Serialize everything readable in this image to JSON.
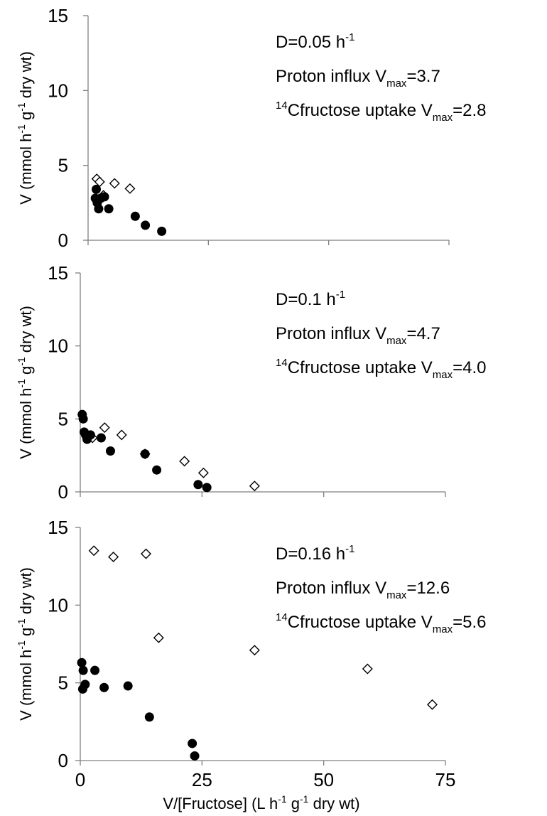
{
  "figure": {
    "xlabel_main": "V/[Fructose] (L h",
    "xlabel_sup1": "-1",
    "xlabel_mid": " g",
    "xlabel_sup2": "-1",
    "xlabel_end": " dry wt)",
    "ylabel_main": "V (mmol h",
    "ylabel_sup1": "-1",
    "ylabel_mid": " g",
    "ylabel_sup2": "-1",
    "ylabel_end": " dry wt)",
    "annotation_prefix_d": "D=",
    "annotation_unit_h": " h",
    "annotation_unit_sup": "-1",
    "annotation_proton": "Proton influx V",
    "annotation_uptake_sup": "14",
    "annotation_uptake": "Cfructose uptake V",
    "annotation_sub": "max",
    "annotation_eq": "="
  },
  "chart_data": [
    {
      "type": "scatter",
      "dilution_rate": "0.05",
      "proton_vmax": "3.7",
      "uptake_vmax": "2.8",
      "xlim": [
        0,
        75
      ],
      "ylim": [
        0,
        15
      ],
      "yticks": [
        "15",
        "10",
        "5",
        "0"
      ],
      "xticks": [],
      "series": [
        {
          "marker": "open-diamond",
          "points": [
            [
              1.8,
              4.1
            ],
            [
              2.4,
              3.9
            ],
            [
              3.2,
              3.0
            ],
            [
              5.5,
              3.8
            ],
            [
              8.7,
              3.45
            ]
          ]
        },
        {
          "marker": "filled-circle",
          "points": [
            [
              1.7,
              3.4
            ],
            [
              1.5,
              2.8
            ],
            [
              1.9,
              2.5
            ],
            [
              2.2,
              2.1
            ],
            [
              2.6,
              2.8
            ],
            [
              3.4,
              2.9
            ],
            [
              4.3,
              2.1
            ],
            [
              9.8,
              1.6
            ],
            [
              11.9,
              1.0
            ],
            [
              15.3,
              0.6
            ]
          ]
        }
      ]
    },
    {
      "type": "scatter",
      "dilution_rate": "0.1",
      "proton_vmax": "4.7",
      "uptake_vmax": "4.0",
      "xlim": [
        0,
        75
      ],
      "ylim": [
        0,
        15
      ],
      "yticks": [
        "15",
        "10",
        "5",
        "0"
      ],
      "xticks": [],
      "series": [
        {
          "marker": "open-diamond",
          "points": [
            [
              2.5,
              3.7
            ],
            [
              5.0,
              4.4
            ],
            [
              8.5,
              3.9
            ],
            [
              13.3,
              2.6
            ],
            [
              21.4,
              2.1
            ],
            [
              25.3,
              1.3
            ],
            [
              35.8,
              0.4
            ]
          ]
        },
        {
          "marker": "filled-circle",
          "points": [
            [
              0.4,
              5.3
            ],
            [
              0.6,
              5.0
            ],
            [
              0.8,
              4.1
            ],
            [
              1.1,
              3.9
            ],
            [
              1.4,
              3.6
            ],
            [
              2.1,
              3.9
            ],
            [
              4.3,
              3.7
            ],
            [
              6.2,
              2.8
            ],
            [
              13.3,
              2.6
            ],
            [
              15.7,
              1.5
            ],
            [
              24.2,
              0.5
            ],
            [
              26.0,
              0.3
            ]
          ]
        }
      ]
    },
    {
      "type": "scatter",
      "dilution_rate": "0.16",
      "proton_vmax": "12.6",
      "uptake_vmax": "5.6",
      "xlim": [
        0,
        75
      ],
      "ylim": [
        0,
        15
      ],
      "yticks": [
        "15",
        "10",
        "5",
        "0"
      ],
      "xticks": [
        "0",
        "25",
        "50",
        "75"
      ],
      "series": [
        {
          "marker": "open-diamond",
          "points": [
            [
              2.8,
              13.5
            ],
            [
              6.8,
              13.1
            ],
            [
              13.5,
              13.3
            ],
            [
              16.1,
              7.9
            ],
            [
              35.8,
              7.1
            ],
            [
              59.0,
              5.9
            ],
            [
              72.3,
              3.6
            ]
          ]
        },
        {
          "marker": "filled-circle",
          "points": [
            [
              0.3,
              6.3
            ],
            [
              0.6,
              5.8
            ],
            [
              1.0,
              4.9
            ],
            [
              0.5,
              4.6
            ],
            [
              3.0,
              5.8
            ],
            [
              4.9,
              4.7
            ],
            [
              9.8,
              4.8
            ],
            [
              14.2,
              2.8
            ],
            [
              23.0,
              1.1
            ],
            [
              23.5,
              0.3
            ]
          ]
        }
      ]
    }
  ]
}
